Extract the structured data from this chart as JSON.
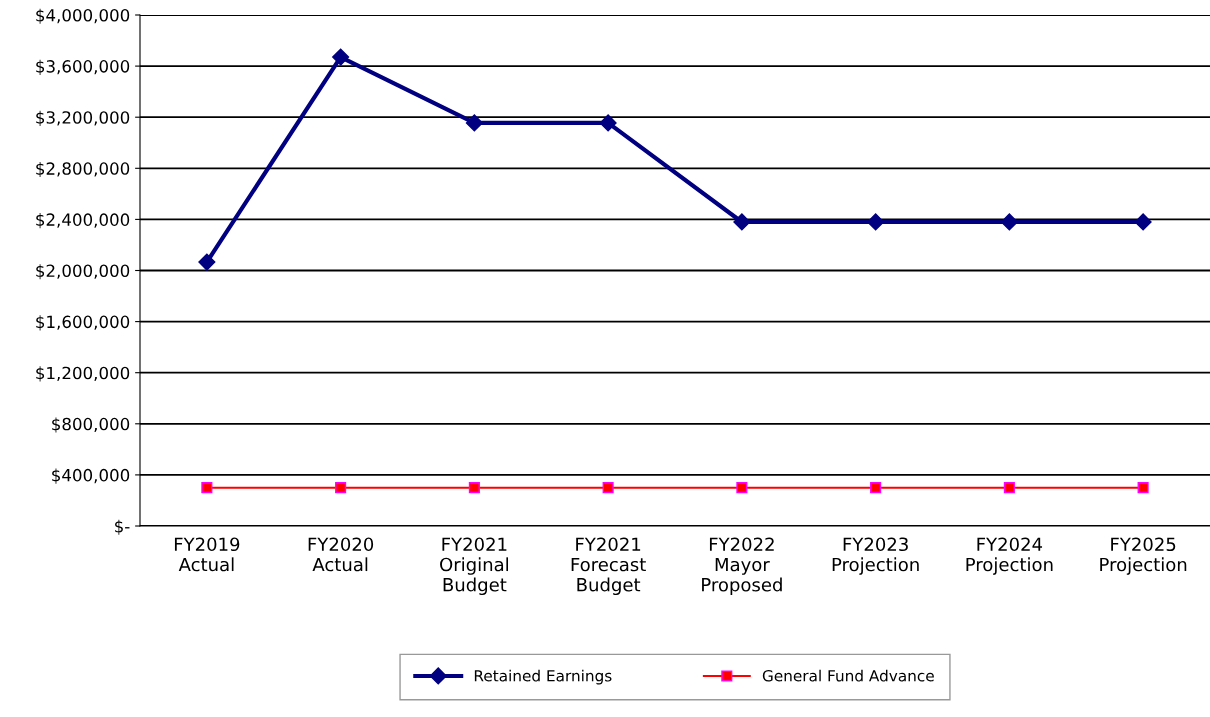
{
  "chart_data": {
    "type": "line",
    "categories": [
      "FY2019\nActual",
      "FY2020\nActual",
      "FY2021\nOriginal\nBudget",
      "FY2021\nForecast\nBudget",
      "FY2022\nMayor\nProposed",
      "FY2023\nProjection",
      "FY2024\nProjection",
      "FY2025\nProjection"
    ],
    "series": [
      {
        "name": "Retained Earnings",
        "color": "#000080",
        "marker": "diamond",
        "values": [
          2066000,
          3671000,
          3155000,
          3155000,
          2380000,
          2380000,
          2380000,
          2380000
        ]
      },
      {
        "name": "General Fund Advance",
        "color": "#ff0000",
        "marker": "square",
        "values": [
          300000,
          300000,
          300000,
          300000,
          300000,
          300000,
          300000,
          300000
        ]
      }
    ],
    "ylim": [
      0,
      4000000
    ],
    "yticks": [
      {
        "value": 0,
        "label": "$-"
      },
      {
        "value": 400000,
        "label": "$400,000"
      },
      {
        "value": 800000,
        "label": "$800,000"
      },
      {
        "value": 1200000,
        "label": "$1,200,000"
      },
      {
        "value": 1600000,
        "label": "$1,600,000"
      },
      {
        "value": 2000000,
        "label": "$2,000,000"
      },
      {
        "value": 2400000,
        "label": "$2,400,000"
      },
      {
        "value": 2800000,
        "label": "$2,800,000"
      },
      {
        "value": 3200000,
        "label": "$3,200,000"
      },
      {
        "value": 3600000,
        "label": "$3,600,000"
      },
      {
        "value": 4000000,
        "label": "$4,000,000"
      }
    ],
    "grid": "y",
    "legend": "bottom",
    "line_style": "solid"
  }
}
